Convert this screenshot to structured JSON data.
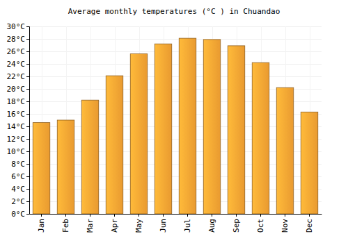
{
  "chart_data": {
    "type": "bar",
    "title": "Average monthly temperatures (°C ) in Chuandao",
    "categories": [
      "Jan",
      "Feb",
      "Mar",
      "Apr",
      "May",
      "Jun",
      "Jul",
      "Aug",
      "Sep",
      "Oct",
      "Nov",
      "Dec"
    ],
    "values": [
      14.6,
      15.0,
      18.2,
      22.1,
      25.6,
      27.2,
      28.1,
      27.9,
      26.9,
      24.2,
      20.2,
      16.3
    ],
    "color": "#ffa834",
    "ylim": [
      0,
      30
    ],
    "yticks": [
      {
        "value": 0,
        "label": "0°C"
      },
      {
        "value": 2,
        "label": "2°C"
      },
      {
        "value": 4,
        "label": "4°C"
      },
      {
        "value": 6,
        "label": "6°C"
      },
      {
        "value": 8,
        "label": "8°C"
      },
      {
        "value": 10,
        "label": "10°C"
      },
      {
        "value": 12,
        "label": "12°C"
      },
      {
        "value": 14,
        "label": "14°C"
      },
      {
        "value": 16,
        "label": "16°C"
      },
      {
        "value": 18,
        "label": "18°C"
      },
      {
        "value": 20,
        "label": "20°C"
      },
      {
        "value": 22,
        "label": "22°C"
      },
      {
        "value": 24,
        "label": "24°C"
      },
      {
        "value": 26,
        "label": "26°C"
      },
      {
        "value": 28,
        "label": "28°C"
      },
      {
        "value": 30,
        "label": "30°C"
      }
    ],
    "grid": true
  }
}
